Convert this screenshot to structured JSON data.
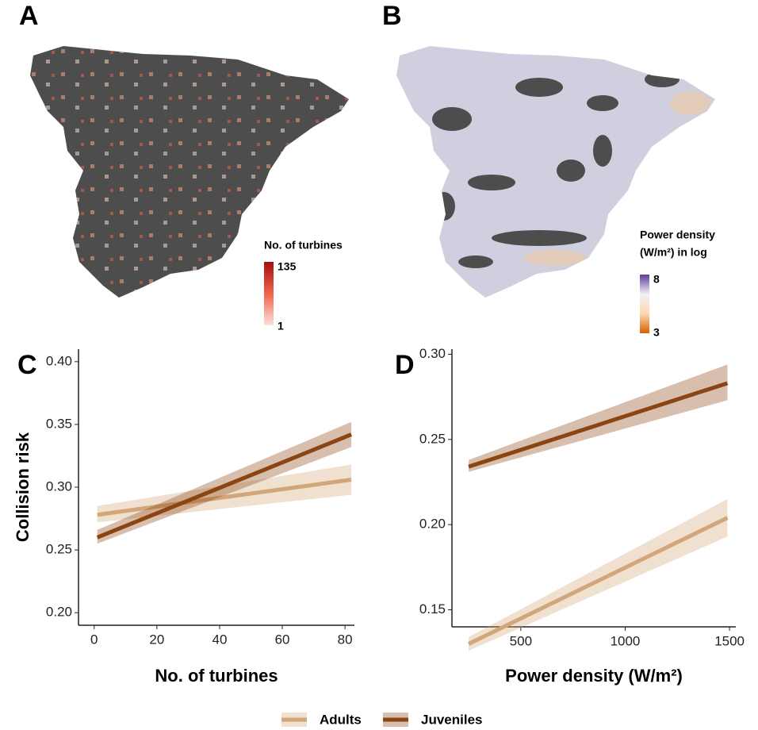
{
  "panels": [
    "A",
    "B",
    "C",
    "D"
  ],
  "maps": [
    {
      "legend_title": [
        "No. of turbines"
      ],
      "scale_max": 135,
      "scale_min": 1,
      "colors": [
        "#fde0dd",
        "#ef6548",
        "#a50f15"
      ],
      "background": "#4d4d4d"
    },
    {
      "legend_title": [
        "Power density",
        "(W/m²) in log"
      ],
      "scale_max": 8,
      "scale_min": 3,
      "colors": [
        "#d95f02",
        "#fdd9b0",
        "#f2f0f7",
        "#5e3c99"
      ],
      "background": "#cfcfe0"
    }
  ],
  "chart_data": [
    {
      "type": "line",
      "x_label": "No. of turbines",
      "y_label": "Collision risk",
      "x": [
        1,
        82
      ],
      "xlim": [
        -5,
        83
      ],
      "xticks": [
        0,
        20,
        40,
        60,
        80
      ],
      "ylim": [
        0.19,
        0.41
      ],
      "yticks": [
        {
          "value": 0.2,
          "label": "0.20"
        },
        0.25,
        {
          "value": 0.3,
          "label": "0.30"
        },
        0.35,
        {
          "value": 0.4,
          "label": "0.40"
        }
      ],
      "series": [
        {
          "name": "Adults",
          "color": "#d2a679",
          "values": [
            0.278,
            0.306
          ],
          "lower": [
            0.272,
            0.294
          ],
          "upper": [
            0.285,
            0.318
          ]
        },
        {
          "name": "Juveniles",
          "color": "#8b4513",
          "values": [
            0.26,
            0.342
          ],
          "lower": [
            0.255,
            0.332
          ],
          "upper": [
            0.266,
            0.352
          ]
        }
      ]
    },
    {
      "type": "line",
      "x_label": "Power density (W/m²)",
      "x": [
        250,
        1490
      ],
      "xlim": [
        170,
        1530
      ],
      "xticks": [
        500,
        1000,
        1500
      ],
      "ylim": [
        0.14,
        0.303
      ],
      "yticks": [
        0.15,
        {
          "value": 0.2,
          "label": "0.20"
        },
        0.25,
        {
          "value": 0.3,
          "label": "0.30"
        }
      ],
      "series": [
        {
          "color": "#d2a679",
          "values": [
            0.13,
            0.204
          ],
          "lower": [
            0.126,
            0.193
          ],
          "upper": [
            0.134,
            0.215
          ]
        },
        {
          "color": "#8b4513",
          "values": [
            0.234,
            0.283
          ],
          "lower": [
            0.231,
            0.273
          ],
          "upper": [
            0.238,
            0.294
          ]
        }
      ]
    }
  ]
}
